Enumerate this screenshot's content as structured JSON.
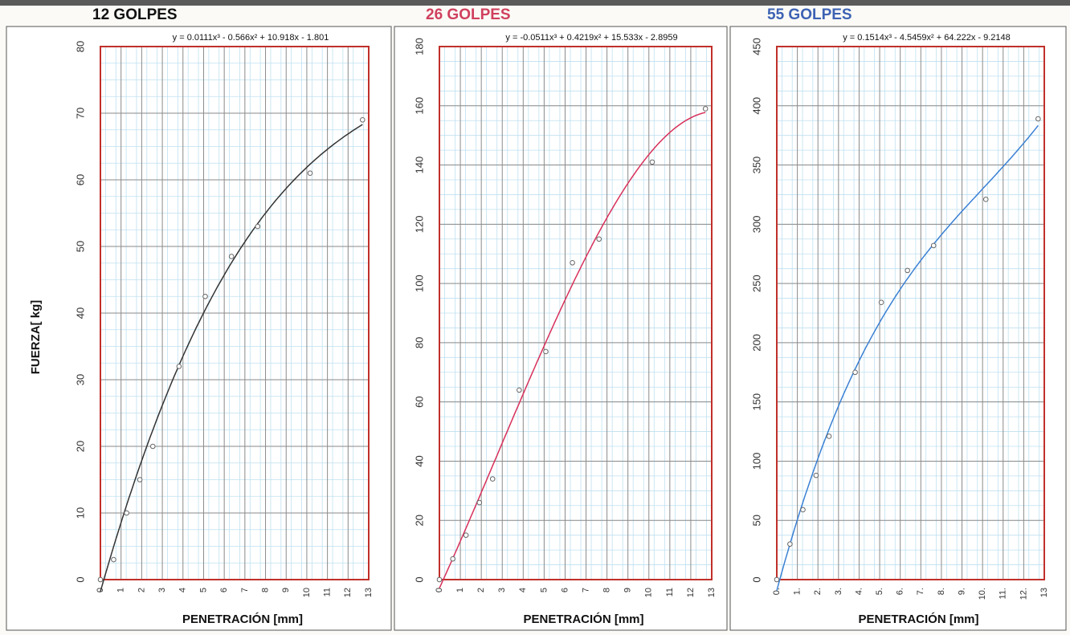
{
  "chart_data": [
    {
      "type": "scatter",
      "title": "12 GOLPES",
      "title_color": "#111111",
      "x_label": "PENETRACIÓN  [mm]",
      "y_label": "FUERZA[ kg]",
      "equation": "y = 0.0111x³ - 0.566x² + 10.918x - 1.801",
      "coefficients": [
        0.0111,
        -0.566,
        10.918,
        -1.801
      ],
      "trend_color": "#333333",
      "x": [
        0,
        0.64,
        1.27,
        1.91,
        2.54,
        3.81,
        5.08,
        6.35,
        7.62,
        10.16,
        12.7
      ],
      "values": [
        0,
        3,
        10,
        15,
        20,
        32,
        42.5,
        48.5,
        53,
        61,
        69
      ],
      "xlim": [
        0,
        13
      ],
      "xticks": [
        0,
        1,
        2,
        3,
        4,
        5,
        6,
        7,
        8,
        9,
        10,
        11,
        12,
        13
      ],
      "ylim": [
        0,
        80
      ],
      "yticks": [
        0,
        10,
        20,
        30,
        40,
        50,
        60,
        70,
        80
      ],
      "grid": true
    },
    {
      "type": "scatter",
      "title": "26 GOLPES",
      "title_color": "#d0405e",
      "x_label": "PENETRACIÓN  [mm]",
      "equation": "y = -0.0511x³ + 0.4219x² + 15.533x - 2.8959",
      "coefficients": [
        -0.0511,
        0.4219,
        15.533,
        -2.8959
      ],
      "trend_color": "#d8305a",
      "x": [
        0,
        0.64,
        1.27,
        1.91,
        2.54,
        3.81,
        5.08,
        6.35,
        7.62,
        10.16,
        12.7
      ],
      "values": [
        0,
        7,
        15,
        26,
        34,
        64,
        77,
        107,
        115,
        141,
        159
      ],
      "xlim": [
        0,
        13
      ],
      "xticks": [
        0,
        1,
        2,
        3,
        4,
        5,
        6,
        7,
        8,
        9,
        10,
        11,
        12,
        13
      ],
      "ylim": [
        0,
        180
      ],
      "yticks": [
        0,
        20,
        40,
        60,
        80,
        100,
        120,
        140,
        160,
        180
      ],
      "grid": true
    },
    {
      "type": "scatter",
      "title": "55 GOLPES",
      "title_color": "#3d62b4",
      "x_label": "PENETRACIÓN  [mm]",
      "equation": "y = 0.1514x³ - 4.5459x² + 64.222x - 9.2148",
      "coefficients": [
        0.1514,
        -4.5459,
        64.222,
        -9.2148
      ],
      "trend_color": "#3a80d4",
      "x": [
        0,
        0.64,
        1.27,
        1.91,
        2.54,
        3.81,
        5.08,
        6.35,
        7.62,
        10.16,
        12.7
      ],
      "values": [
        0,
        30,
        59,
        88,
        121,
        175,
        234,
        261,
        282,
        321,
        389
      ],
      "xlim": [
        0,
        13
      ],
      "xticks": [
        {
          "value": 0,
          "label": "0."
        },
        {
          "value": 1,
          "label": "1."
        },
        {
          "value": 2,
          "label": "2."
        },
        {
          "value": 3,
          "label": "3."
        },
        {
          "value": 4,
          "label": "4."
        },
        {
          "value": 5,
          "label": "5."
        },
        {
          "value": 6,
          "label": "6."
        },
        {
          "value": 7,
          "label": "7."
        },
        {
          "value": 8,
          "label": "8."
        },
        {
          "value": 9,
          "label": "9."
        },
        {
          "value": 10,
          "label": "10."
        },
        {
          "value": 11,
          "label": "11."
        },
        {
          "value": 12,
          "label": "12."
        },
        13
      ],
      "ylim": [
        0,
        450
      ],
      "yticks": [
        0,
        50,
        100,
        150,
        200,
        250,
        300,
        350,
        400,
        450
      ],
      "grid": true
    }
  ]
}
